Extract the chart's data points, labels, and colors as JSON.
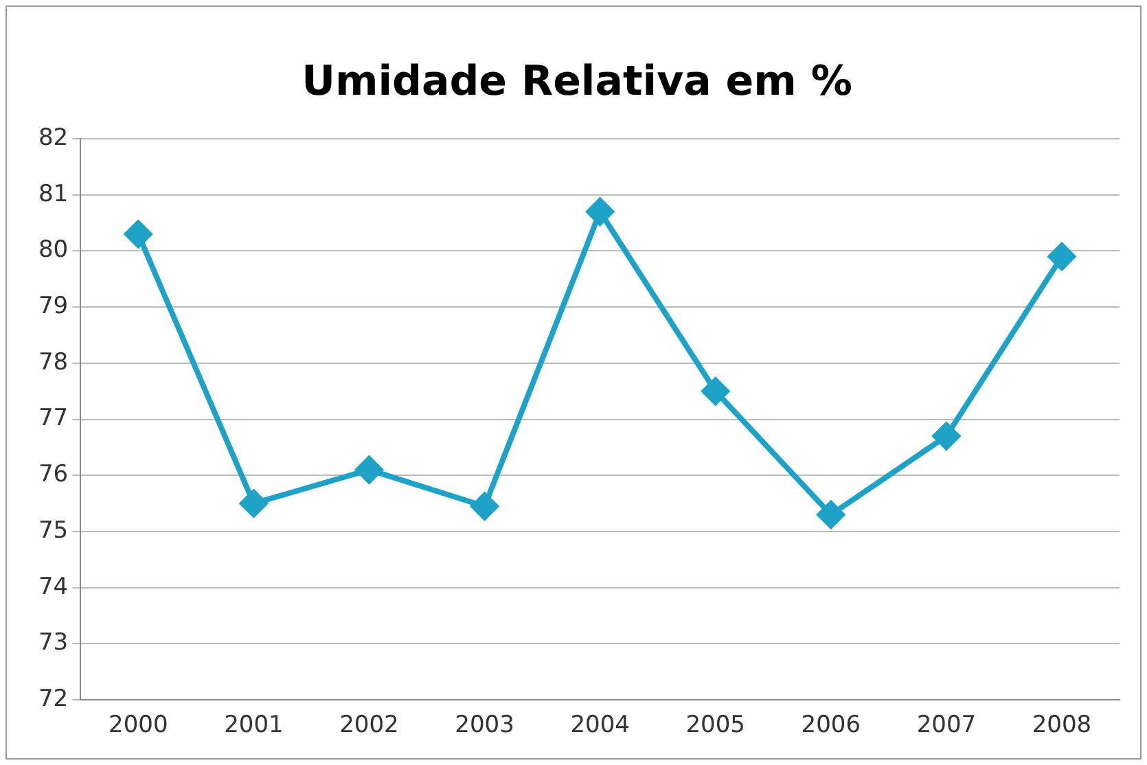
{
  "chart_data": {
    "type": "line",
    "title": "Umidade Relativa em %",
    "categories": [
      "2000",
      "2001",
      "2002",
      "2003",
      "2004",
      "2005",
      "2006",
      "2007",
      "2008"
    ],
    "series": [
      {
        "color": "#1fa2c8",
        "values": [
          80.3,
          75.5,
          76.1,
          75.45,
          80.7,
          77.5,
          75.3,
          76.7,
          79.9
        ]
      }
    ],
    "ylim": [
      72,
      82
    ],
    "yticks": [
      72,
      73,
      74,
      75,
      76,
      77,
      78,
      79,
      80,
      81,
      82
    ],
    "grid": "y",
    "legend": false,
    "marker": "diamond",
    "line_style": "solid"
  }
}
